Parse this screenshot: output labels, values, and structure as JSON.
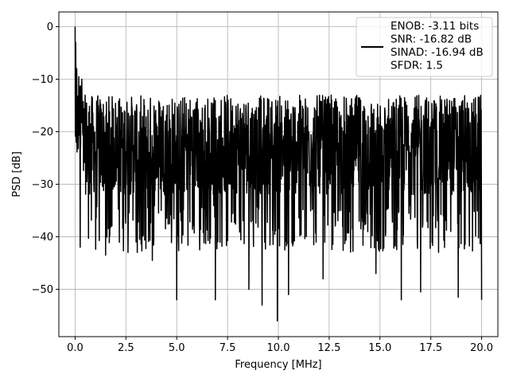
{
  "chart_data": {
    "type": "line",
    "title": "",
    "xlabel": "Frequency [MHz]",
    "ylabel": "PSD [dB]",
    "xlim": [
      -0.8,
      20.8
    ],
    "ylim": [
      -59,
      2.8
    ],
    "xticks": [
      0.0,
      2.5,
      5.0,
      7.5,
      10.0,
      12.5,
      15.0,
      17.5,
      20.0
    ],
    "xtick_labels": [
      "0.0",
      "2.5",
      "5.0",
      "7.5",
      "10.0",
      "12.5",
      "15.0",
      "17.5",
      "20.0"
    ],
    "yticks": [
      0,
      -10,
      -20,
      -30,
      -40,
      -50
    ],
    "ytick_labels": [
      "0",
      "−10",
      "−20",
      "−30",
      "−40",
      "−50"
    ],
    "grid": true,
    "legend_placement": "upper-right",
    "line_color": "#000000",
    "series": [
      {
        "name": "ENOB: -3.11 bits\nSNR: -16.82 dB\nSINAD: -16.94 dB\nSFDR: 1.5",
        "x_range": [
          0.0,
          20.0
        ],
        "band_upper": -13,
        "band_lower": -32,
        "peaks": [
          {
            "x": 0.0,
            "y": 0
          },
          {
            "x": 0.03,
            "y": -3
          },
          {
            "x": 0.08,
            "y": -8
          },
          {
            "x": 0.18,
            "y": -9.5
          },
          {
            "x": 0.33,
            "y": -10
          },
          {
            "x": 20.0,
            "y": -13
          }
        ],
        "dips": [
          {
            "x": 0.25,
            "y": -42
          },
          {
            "x": 1.5,
            "y": -43.5
          },
          {
            "x": 2.6,
            "y": -43
          },
          {
            "x": 3.0,
            "y": -41
          },
          {
            "x": 3.8,
            "y": -44.5
          },
          {
            "x": 5.0,
            "y": -52
          },
          {
            "x": 6.9,
            "y": -52
          },
          {
            "x": 8.55,
            "y": -50
          },
          {
            "x": 9.2,
            "y": -53
          },
          {
            "x": 9.95,
            "y": -56
          },
          {
            "x": 10.5,
            "y": -51
          },
          {
            "x": 12.2,
            "y": -48
          },
          {
            "x": 14.8,
            "y": -47
          },
          {
            "x": 16.05,
            "y": -52
          },
          {
            "x": 17.0,
            "y": -50.5
          },
          {
            "x": 18.85,
            "y": -51.5
          },
          {
            "x": 20.0,
            "y": -52
          }
        ]
      }
    ]
  }
}
